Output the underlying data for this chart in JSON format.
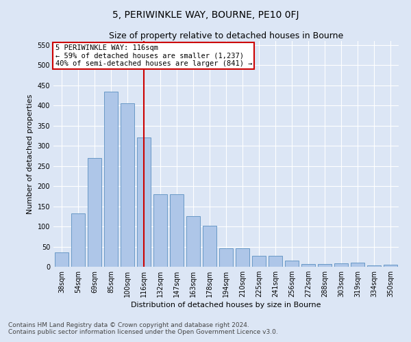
{
  "title": "5, PERIWINKLE WAY, BOURNE, PE10 0FJ",
  "subtitle": "Size of property relative to detached houses in Bourne",
  "xlabel": "Distribution of detached houses by size in Bourne",
  "ylabel": "Number of detached properties",
  "categories": [
    "38sqm",
    "54sqm",
    "69sqm",
    "85sqm",
    "100sqm",
    "116sqm",
    "132sqm",
    "147sqm",
    "163sqm",
    "178sqm",
    "194sqm",
    "210sqm",
    "225sqm",
    "241sqm",
    "256sqm",
    "272sqm",
    "288sqm",
    "303sqm",
    "319sqm",
    "334sqm",
    "350sqm"
  ],
  "values": [
    35,
    133,
    270,
    435,
    405,
    320,
    180,
    180,
    125,
    102,
    45,
    45,
    28,
    28,
    15,
    6,
    6,
    9,
    10,
    4,
    5
  ],
  "bar_color": "#aec6e8",
  "bar_edge_color": "#5a8fc0",
  "vline_x": 5,
  "vline_color": "#cc0000",
  "annotation_text": "5 PERIWINKLE WAY: 116sqm\n← 59% of detached houses are smaller (1,237)\n40% of semi-detached houses are larger (841) →",
  "annotation_box_color": "#ffffff",
  "annotation_box_edge": "#cc0000",
  "ylim": [
    0,
    560
  ],
  "yticks": [
    0,
    50,
    100,
    150,
    200,
    250,
    300,
    350,
    400,
    450,
    500,
    550
  ],
  "bg_color": "#dce6f5",
  "plot_bg_color": "#dce6f5",
  "footer_line1": "Contains HM Land Registry data © Crown copyright and database right 2024.",
  "footer_line2": "Contains public sector information licensed under the Open Government Licence v3.0.",
  "title_fontsize": 10,
  "subtitle_fontsize": 9,
  "tick_fontsize": 7,
  "ylabel_fontsize": 8,
  "xlabel_fontsize": 8,
  "annotation_fontsize": 7.5,
  "footer_fontsize": 6.5
}
